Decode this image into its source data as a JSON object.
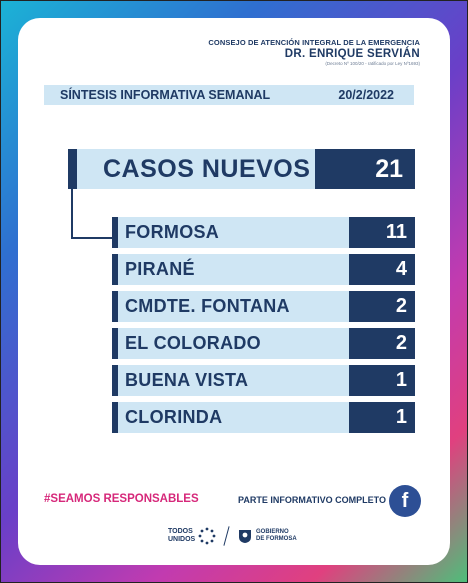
{
  "header": {
    "council": "CONSEJO DE ATENCIÓN INTEGRAL DE LA EMERGENCIA",
    "name": "DR. ENRIQUE SERVIÁN",
    "subtitle": "(Decreto Nº 100/20 - ratificado por Ley Nº1693)"
  },
  "synthesis": {
    "title": "SÍNTESIS INFORMATIVA SEMANAL",
    "date": "20/2/2022"
  },
  "total": {
    "label": "CASOS NUEVOS",
    "value": "21"
  },
  "cities": [
    {
      "label": "FORMOSA",
      "value": "11"
    },
    {
      "label": "PIRANÉ",
      "value": "4"
    },
    {
      "label": "CMDTE. FONTANA",
      "value": "2"
    },
    {
      "label": "EL COLORADO",
      "value": "2"
    },
    {
      "label": "BUENA VISTA",
      "value": "1"
    },
    {
      "label": "CLORINDA",
      "value": "1"
    }
  ],
  "footer": {
    "hashtag_prefix": "#SEAMOS ",
    "hashtag_bold": "RESPONSABLES",
    "parte": "PARTE INFORMATIVO COMPLETO",
    "fb_glyph": "f",
    "todos_line1": "TODOS",
    "todos_line2": "UNIDOS",
    "gob_line1": "GOBIERNO",
    "gob_line2": "DE FORMOSA"
  },
  "colors": {
    "navy": "#1f3a64",
    "light_blue": "#cfe6f4",
    "magenta": "#d6287a",
    "facebook": "#2d4f95"
  },
  "icons": {
    "facebook": "facebook-icon",
    "sun": "sun-icon",
    "shield": "shield-icon"
  }
}
